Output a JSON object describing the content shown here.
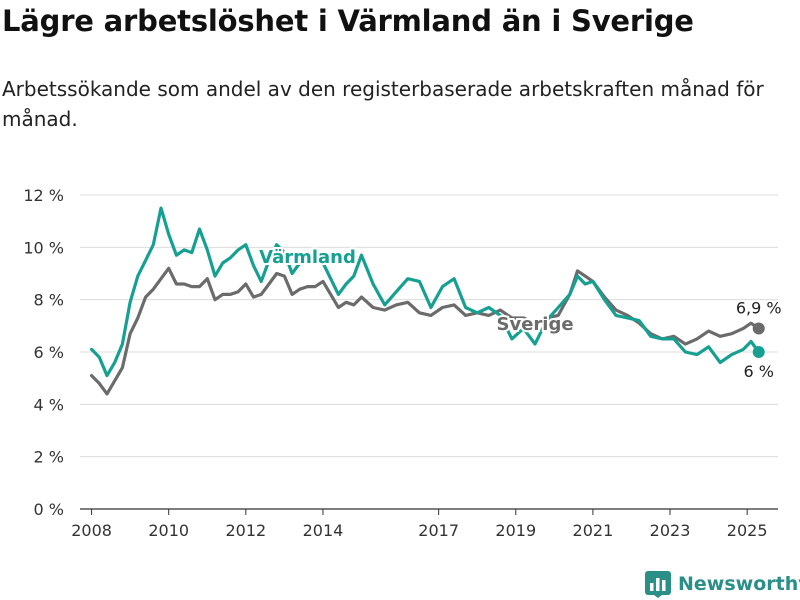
{
  "header": {
    "title": "Lägre arbetslöshet i Värmland än i Sverige",
    "subtitle": "Arbetssökande som andel av den registerbaserade arbetskraften månad för månad."
  },
  "brand": {
    "name": "Newsworthy",
    "icon": "bar-chart-logo-icon",
    "color": "#2a8f86"
  },
  "chart_data": {
    "type": "line",
    "title": "Lägre arbetslöshet i Värmland än i Sverige",
    "subtitle": "Arbetssökande som andel av den registerbaserade arbetskraften månad för månad.",
    "xlabel": "",
    "ylabel": "",
    "ylim": [
      0,
      12
    ],
    "xlim": [
      2007.7,
      2025.8
    ],
    "grid": "horizontal",
    "y_ticks": [
      0,
      2,
      4,
      6,
      8,
      10,
      12
    ],
    "y_tick_labels": [
      "0 %",
      "2 %",
      "4 %",
      "6 %",
      "8 %",
      "10 %",
      "12 %"
    ],
    "x_ticks": [
      2008,
      2010,
      2012,
      2014,
      2017,
      2019,
      2021,
      2023,
      2025
    ],
    "x_tick_labels": [
      "2008",
      "2010",
      "2012",
      "2014",
      "2017",
      "2019",
      "2021",
      "2023",
      "2025"
    ],
    "series": [
      {
        "name": "Sverige",
        "color": "#6b6b6b",
        "end_label": "6,9 %",
        "x": [
          2008.0,
          2008.2,
          2008.4,
          2008.6,
          2008.8,
          2009.0,
          2009.2,
          2009.4,
          2009.6,
          2009.8,
          2010.0,
          2010.2,
          2010.4,
          2010.6,
          2010.8,
          2011.0,
          2011.2,
          2011.4,
          2011.6,
          2011.8,
          2012.0,
          2012.2,
          2012.4,
          2012.6,
          2012.8,
          2013.0,
          2013.2,
          2013.4,
          2013.6,
          2013.8,
          2014.0,
          2014.2,
          2014.4,
          2014.6,
          2014.8,
          2015.0,
          2015.3,
          2015.6,
          2015.9,
          2016.2,
          2016.5,
          2016.8,
          2017.1,
          2017.4,
          2017.7,
          2018.0,
          2018.3,
          2018.6,
          2018.9,
          2019.2,
          2019.5,
          2019.8,
          2020.1,
          2020.4,
          2020.6,
          2020.8,
          2021.0,
          2021.3,
          2021.6,
          2021.9,
          2022.2,
          2022.5,
          2022.8,
          2023.1,
          2023.4,
          2023.7,
          2024.0,
          2024.3,
          2024.6,
          2024.9,
          2025.1,
          2025.3
        ],
        "values": [
          5.1,
          4.8,
          4.4,
          4.9,
          5.4,
          6.7,
          7.3,
          8.1,
          8.4,
          8.8,
          9.2,
          8.6,
          8.6,
          8.5,
          8.5,
          8.8,
          8.0,
          8.2,
          8.2,
          8.3,
          8.6,
          8.1,
          8.2,
          8.6,
          9.0,
          8.9,
          8.2,
          8.4,
          8.5,
          8.5,
          8.7,
          8.2,
          7.7,
          7.9,
          7.8,
          8.1,
          7.7,
          7.6,
          7.8,
          7.9,
          7.5,
          7.4,
          7.7,
          7.8,
          7.4,
          7.5,
          7.4,
          7.6,
          7.3,
          7.3,
          7.1,
          7.3,
          7.4,
          8.2,
          9.1,
          8.9,
          8.7,
          8.1,
          7.6,
          7.4,
          7.1,
          6.7,
          6.5,
          6.6,
          6.3,
          6.5,
          6.8,
          6.6,
          6.7,
          6.9,
          7.1,
          6.9
        ]
      },
      {
        "name": "Värmland",
        "color": "#16a091",
        "end_label": "6 %",
        "x": [
          2008.0,
          2008.2,
          2008.4,
          2008.6,
          2008.8,
          2009.0,
          2009.2,
          2009.4,
          2009.6,
          2009.8,
          2010.0,
          2010.2,
          2010.4,
          2010.6,
          2010.8,
          2011.0,
          2011.2,
          2011.4,
          2011.6,
          2011.8,
          2012.0,
          2012.2,
          2012.4,
          2012.6,
          2012.8,
          2013.0,
          2013.2,
          2013.4,
          2013.6,
          2013.8,
          2014.0,
          2014.2,
          2014.4,
          2014.6,
          2014.8,
          2015.0,
          2015.3,
          2015.6,
          2015.9,
          2016.2,
          2016.5,
          2016.8,
          2017.1,
          2017.4,
          2017.7,
          2018.0,
          2018.3,
          2018.6,
          2018.9,
          2019.2,
          2019.5,
          2019.8,
          2020.1,
          2020.4,
          2020.6,
          2020.8,
          2021.0,
          2021.3,
          2021.6,
          2021.9,
          2022.2,
          2022.5,
          2022.8,
          2023.1,
          2023.4,
          2023.7,
          2024.0,
          2024.3,
          2024.6,
          2024.9,
          2025.1,
          2025.3
        ],
        "values": [
          6.1,
          5.8,
          5.1,
          5.6,
          6.3,
          7.9,
          8.9,
          9.5,
          10.1,
          11.5,
          10.5,
          9.7,
          9.9,
          9.8,
          10.7,
          9.9,
          8.9,
          9.4,
          9.6,
          9.9,
          10.1,
          9.3,
          8.7,
          9.5,
          10.1,
          9.8,
          9.0,
          9.4,
          9.6,
          9.5,
          9.4,
          8.8,
          8.2,
          8.6,
          8.9,
          9.7,
          8.6,
          7.8,
          8.3,
          8.8,
          8.7,
          7.7,
          8.5,
          8.8,
          7.7,
          7.5,
          7.7,
          7.4,
          6.5,
          6.9,
          6.3,
          7.2,
          7.7,
          8.2,
          8.9,
          8.6,
          8.7,
          8.0,
          7.4,
          7.3,
          7.2,
          6.6,
          6.5,
          6.5,
          6.0,
          5.9,
          6.2,
          5.6,
          5.9,
          6.1,
          6.4,
          6.0
        ]
      }
    ]
  }
}
